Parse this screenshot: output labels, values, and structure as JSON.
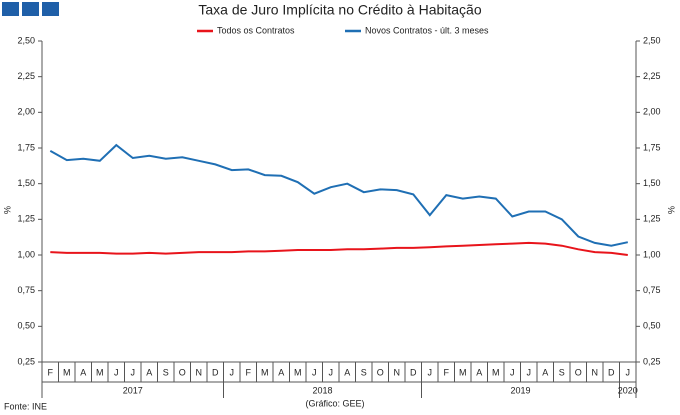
{
  "chart_data": {
    "type": "line",
    "title": "Taxa de Juro Implícita no Crédito à Habitação",
    "y_label": "%",
    "y2_label": "%",
    "source": "Fonte: INE",
    "credit": "(Gráfico: GEE)",
    "categories": [
      "F",
      "M",
      "A",
      "M",
      "J",
      "J",
      "A",
      "S",
      "O",
      "N",
      "D",
      "J",
      "F",
      "M",
      "A",
      "M",
      "J",
      "J",
      "A",
      "S",
      "O",
      "N",
      "D",
      "J",
      "F",
      "M",
      "A",
      "M",
      "J",
      "J",
      "A",
      "S",
      "O",
      "N",
      "D",
      "J"
    ],
    "years": [
      "2017",
      "2018",
      "2019",
      "2020"
    ],
    "series": [
      {
        "name": "Todos os Contratos",
        "color": "#e8141b",
        "values": [
          1.02,
          1.015,
          1.015,
          1.015,
          1.01,
          1.01,
          1.015,
          1.01,
          1.015,
          1.02,
          1.02,
          1.02,
          1.025,
          1.025,
          1.03,
          1.035,
          1.035,
          1.035,
          1.04,
          1.04,
          1.045,
          1.05,
          1.05,
          1.055,
          1.06,
          1.065,
          1.07,
          1.075,
          1.08,
          1.085,
          1.08,
          1.065,
          1.04,
          1.02,
          1.015,
          1.0
        ]
      },
      {
        "name": "Novos Contratos - últ. 3 meses",
        "color": "#1f6fb4",
        "values": [
          1.73,
          1.665,
          1.675,
          1.66,
          1.77,
          1.68,
          1.695,
          1.675,
          1.685,
          1.66,
          1.635,
          1.595,
          1.6,
          1.56,
          1.555,
          1.51,
          1.43,
          1.475,
          1.5,
          1.44,
          1.46,
          1.455,
          1.425,
          1.28,
          1.42,
          1.395,
          1.41,
          1.395,
          1.27,
          1.305,
          1.305,
          1.25,
          1.13,
          1.085,
          1.065,
          1.09
        ]
      }
    ],
    "ylim": [
      0.25,
      2.5
    ],
    "yticks": [
      {
        "value": 0.25,
        "label": "0,25"
      },
      {
        "value": 0.5,
        "label": "0,50"
      },
      {
        "value": 0.75,
        "label": "0,75"
      },
      {
        "value": 1.0,
        "label": "1,00"
      },
      {
        "value": 1.25,
        "label": "1,25"
      },
      {
        "value": 1.5,
        "label": "1,50"
      },
      {
        "value": 1.75,
        "label": "1,75"
      },
      {
        "value": 2.0,
        "label": "2,00"
      },
      {
        "value": 2.25,
        "label": "2,25"
      },
      {
        "value": 2.5,
        "label": "2,50"
      }
    ],
    "y2lim": [
      0.25,
      2.5
    ],
    "y2ticks": [
      {
        "value": 0.25,
        "label": "0,25"
      },
      {
        "value": 0.5,
        "label": "0,50"
      },
      {
        "value": 0.75,
        "label": "0,75"
      },
      {
        "value": 1.0,
        "label": "1,00"
      },
      {
        "value": 1.25,
        "label": "1,25"
      },
      {
        "value": 1.5,
        "label": "1,50"
      },
      {
        "value": 1.75,
        "label": "1,75"
      },
      {
        "value": 2.0,
        "label": "2,00"
      },
      {
        "value": 2.25,
        "label": "2,25"
      },
      {
        "value": 2.5,
        "label": "2,50"
      }
    ],
    "grid": false,
    "legend": "top"
  }
}
